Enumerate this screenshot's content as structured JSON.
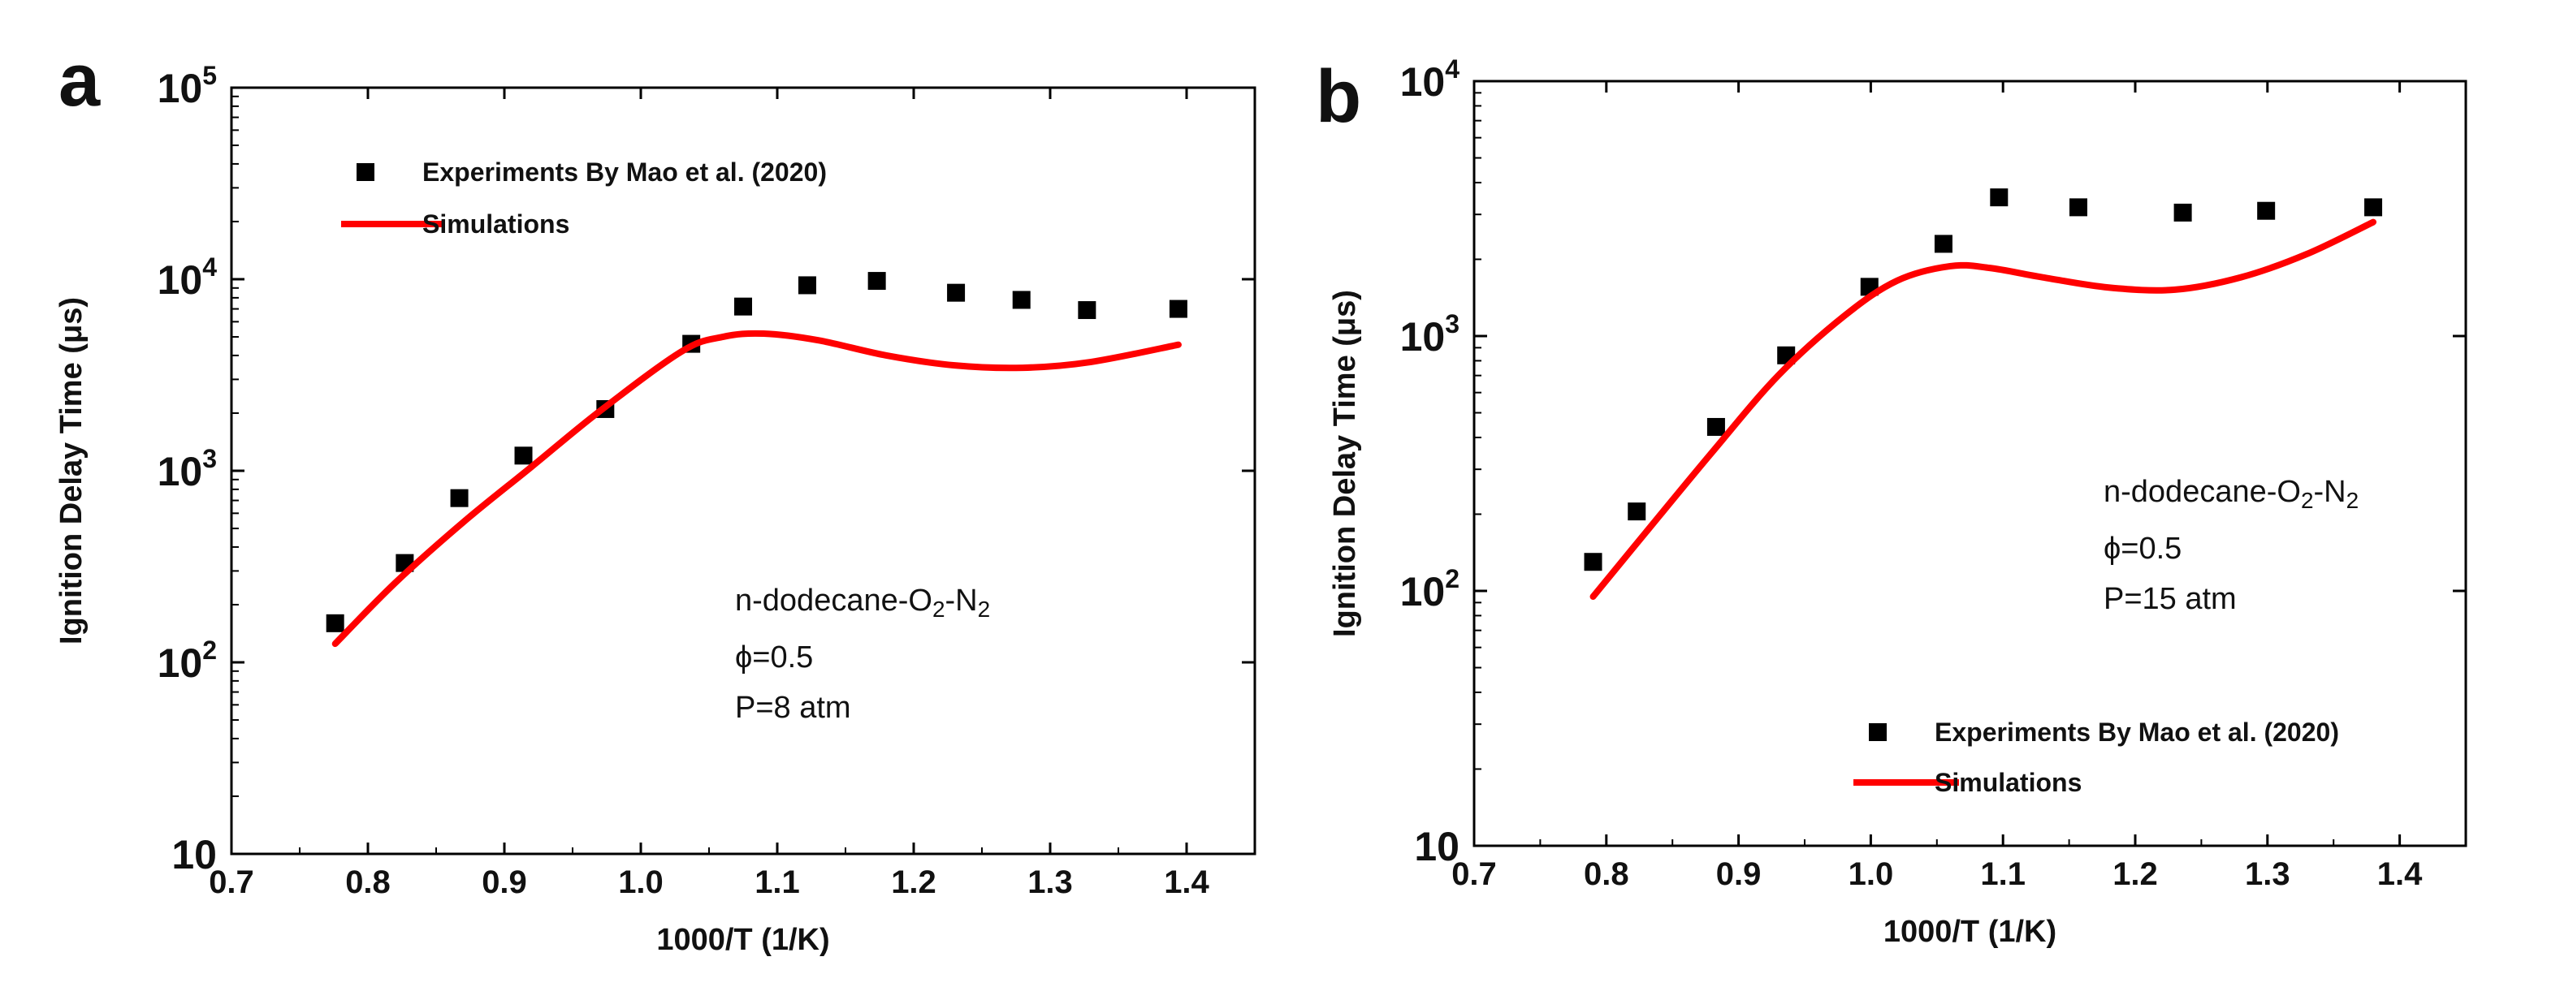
{
  "colors": {
    "experiment": "#000000",
    "simulation": "#ff0000",
    "axis": "#000000"
  },
  "chart_data": [
    {
      "panel": "a",
      "type": "scatter",
      "xlabel": "1000/T (1/K)",
      "ylabel": "Ignition Delay Time (μs)",
      "xlim": [
        0.7,
        1.45
      ],
      "ylim": [
        10,
        100000
      ],
      "yscale": "log",
      "xticks": [
        {
          "v": 0.7,
          "label": "0.7"
        },
        {
          "v": 0.8,
          "label": "0.8"
        },
        {
          "v": 0.9,
          "label": "0.9"
        },
        {
          "v": 1.0,
          "label": "1.0"
        },
        {
          "v": 1.1,
          "label": "1.1"
        },
        {
          "v": 1.2,
          "label": "1.2"
        },
        {
          "v": 1.3,
          "label": "1.3"
        },
        {
          "v": 1.4,
          "label": "1.4"
        }
      ],
      "yticks": [
        {
          "v": 10,
          "base": "10",
          "exp": ""
        },
        {
          "v": 100,
          "base": "10",
          "exp": "2"
        },
        {
          "v": 1000,
          "base": "10",
          "exp": "3"
        },
        {
          "v": 10000,
          "base": "10",
          "exp": "4"
        },
        {
          "v": 100000,
          "base": "10",
          "exp": "5"
        }
      ],
      "series": [
        {
          "name": "Experiments By Mao et al. (2020)",
          "kind": "scatter",
          "marker": "square",
          "x": [
            0.776,
            0.827,
            0.867,
            0.914,
            0.974,
            1.037,
            1.075,
            1.122,
            1.173,
            1.231,
            1.279,
            1.327,
            1.394
          ],
          "y": [
            160,
            330,
            720,
            1200,
            2100,
            4600,
            7200,
            9300,
            9800,
            8500,
            7800,
            6900,
            7000
          ]
        },
        {
          "name": "Simulations",
          "kind": "line",
          "x": [
            0.776,
            0.82,
            0.87,
            0.92,
            0.97,
            1.03,
            1.06,
            1.09,
            1.13,
            1.18,
            1.23,
            1.28,
            1.33,
            1.394
          ],
          "y": [
            125,
            260,
            540,
            1050,
            2050,
            4200,
            5000,
            5200,
            4800,
            4000,
            3550,
            3450,
            3700,
            4550
          ]
        }
      ],
      "legend": {
        "position": "top-left",
        "entries": [
          "Experiments By Mao et al. (2020)",
          "Simulations"
        ]
      },
      "annotation": {
        "position": "lower-right",
        "fuel": "n-dodecane-O",
        "sub1": "2",
        "dash": "-N",
        "sub2": "2",
        "phi": "ϕ=0.5",
        "pressure": "P=8 atm"
      }
    },
    {
      "panel": "b",
      "type": "scatter",
      "xlabel": "1000/T (1/K)",
      "ylabel": "Ignition Delay Time (μs)",
      "xlim": [
        0.7,
        1.45
      ],
      "ylim": [
        10,
        10000
      ],
      "yscale": "log",
      "xticks": [
        {
          "v": 0.7,
          "label": "0.7"
        },
        {
          "v": 0.8,
          "label": "0.8"
        },
        {
          "v": 0.9,
          "label": "0.9"
        },
        {
          "v": 1.0,
          "label": "1.0"
        },
        {
          "v": 1.1,
          "label": "1.1"
        },
        {
          "v": 1.2,
          "label": "1.2"
        },
        {
          "v": 1.3,
          "label": "1.3"
        },
        {
          "v": 1.4,
          "label": "1.4"
        }
      ],
      "yticks": [
        {
          "v": 10,
          "base": "10",
          "exp": ""
        },
        {
          "v": 100,
          "base": "10",
          "exp": "2"
        },
        {
          "v": 1000,
          "base": "10",
          "exp": "3"
        },
        {
          "v": 10000,
          "base": "10",
          "exp": "4"
        }
      ],
      "series": [
        {
          "name": "Experiments By Mao et al. (2020)",
          "kind": "scatter",
          "marker": "square",
          "x": [
            0.79,
            0.823,
            0.883,
            0.936,
            0.999,
            1.055,
            1.097,
            1.157,
            1.236,
            1.299,
            1.38
          ],
          "y": [
            130,
            205,
            440,
            840,
            1560,
            2300,
            3500,
            3200,
            3050,
            3100,
            3200
          ]
        },
        {
          "name": "Simulations",
          "kind": "line",
          "x": [
            0.79,
            0.83,
            0.88,
            0.93,
            0.98,
            1.02,
            1.06,
            1.09,
            1.13,
            1.18,
            1.23,
            1.28,
            1.33,
            1.38
          ],
          "y": [
            95,
            170,
            350,
            700,
            1200,
            1650,
            1880,
            1850,
            1700,
            1550,
            1520,
            1700,
            2100,
            2800
          ]
        }
      ],
      "legend": {
        "position": "bottom-right",
        "entries": [
          "Experiments By Mao et al. (2020)",
          "Simulations"
        ]
      },
      "annotation": {
        "position": "upper-right",
        "fuel": "n-dodecane-O",
        "sub1": "2",
        "dash": "-N",
        "sub2": "2",
        "phi": "ϕ=0.5",
        "pressure": "P=15 atm"
      }
    }
  ]
}
